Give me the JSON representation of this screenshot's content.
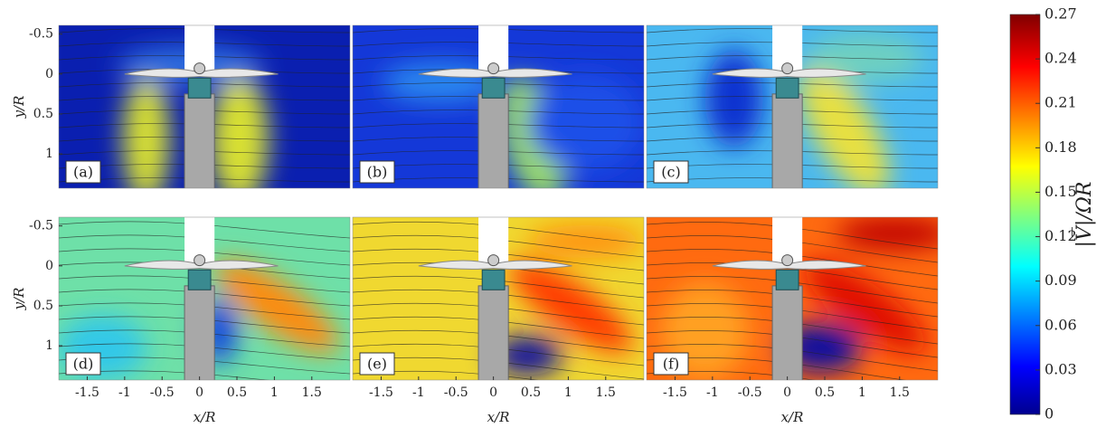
{
  "chart_data": {
    "type": "contour",
    "panels": [
      {
        "label": "(a)"
      },
      {
        "label": "(b)"
      },
      {
        "label": "(c)"
      },
      {
        "label": "(d)"
      },
      {
        "label": "(e)"
      },
      {
        "label": "(f)"
      }
    ],
    "xlabel": "x/R",
    "ylabel": "y/R",
    "xlim": [
      -1.88,
      2.01
    ],
    "xticks": [
      -1.5,
      -1,
      -0.5,
      0,
      0.5,
      1,
      1.5
    ],
    "ylim": [
      -0.61,
      1.43
    ],
    "yticks": [
      -0.5,
      0,
      0.5,
      1
    ],
    "colorbar": {
      "label": "|V̅|/ΩR",
      "lim": [
        0,
        0.27
      ],
      "ticks": [
        0,
        0.03,
        0.06,
        0.09,
        0.12,
        0.15,
        0.18,
        0.21,
        0.24,
        0.27
      ]
    }
  }
}
